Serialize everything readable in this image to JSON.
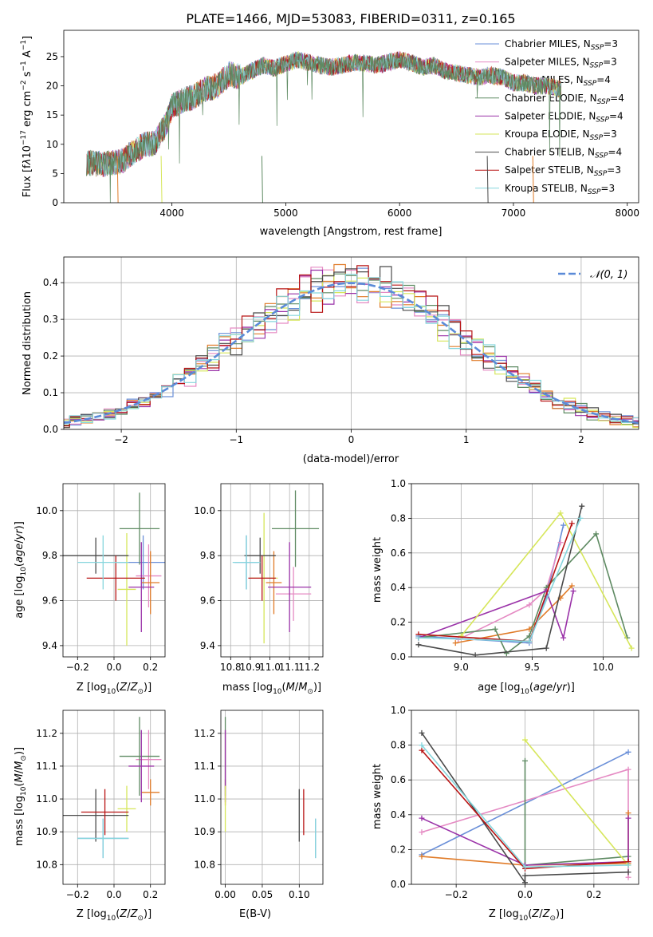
{
  "colors": {
    "series": [
      "#6a8fd8",
      "#e58ac3",
      "#e07b28",
      "#5e8a62",
      "#9a32a8",
      "#d6e65a",
      "#4a4a4a",
      "#b81414",
      "#86d6dd"
    ],
    "normal": "#5b8bd8"
  },
  "chart_data": [
    {
      "type": "line",
      "title": "PLATE=1466, MJD=53083, FIBERID=0311, z=0.165",
      "xlabel": "wavelength [Angstrom, rest frame]",
      "ylabel": "Flux [f_λ10^-17 erg cm^-2 s^-1 A^-1]",
      "xlim": [
        3050,
        8100
      ],
      "ylim": [
        0,
        29.5
      ],
      "xticks": [
        "4000",
        "5000",
        "6000",
        "7000",
        "8000"
      ],
      "yticks": [
        "0",
        "5",
        "10",
        "15",
        "20",
        "25"
      ],
      "grid": false,
      "legend_position": "top-right",
      "legend": [
        {
          "model": "Chabrier MILES",
          "n": "3"
        },
        {
          "model": "Salpeter MILES",
          "n": "3"
        },
        {
          "model": "Kroupa MILES",
          "n": "4"
        },
        {
          "model": "Chabrier ELODIE",
          "n": "4"
        },
        {
          "model": "Salpeter ELODIE",
          "n": "4"
        },
        {
          "model": "Kroupa ELODIE",
          "n": "3"
        },
        {
          "model": "Chabrier STELIB",
          "n": "4"
        },
        {
          "model": "Salpeter STELIB",
          "n": "3"
        },
        {
          "model": "Kroupa STELIB",
          "n": "3"
        }
      ],
      "observed_envelope": {
        "x": [
          3250,
          3400,
          3550,
          3650,
          3750,
          3850,
          3950,
          4000,
          4100,
          4200,
          4300,
          4400,
          4500,
          4600,
          4700,
          4800,
          4900,
          5000,
          5100,
          5200,
          5300,
          5400,
          5500,
          5600,
          5700,
          5800,
          5900,
          6000,
          6100,
          6200,
          6300,
          6400,
          6500,
          6600,
          6700,
          6800,
          6900,
          7000,
          7100,
          7200,
          7300,
          7400
        ],
        "y": [
          6.8,
          6.6,
          7.0,
          8.5,
          9.8,
          10.3,
          13.5,
          16.5,
          17.5,
          18.2,
          19.5,
          20.0,
          22.0,
          21.5,
          22.5,
          23.5,
          23.0,
          23.8,
          24.5,
          24.0,
          23.5,
          23.2,
          23.5,
          24.0,
          23.8,
          23.5,
          24.0,
          24.5,
          24.0,
          23.2,
          23.5,
          22.5,
          22.2,
          21.8,
          21.5,
          21.8,
          21.5,
          20.5,
          20.5,
          20.0,
          20.0,
          19.5
        ]
      }
    },
    {
      "type": "step-histogram",
      "xlabel": "(data-model)/error",
      "ylabel": "Normed distribution",
      "xlim": [
        -2.5,
        2.5
      ],
      "ylim": [
        0,
        0.47
      ],
      "xticks": [
        "−2",
        "−1",
        "0",
        "1",
        "2"
      ],
      "yticks": [
        "0.0",
        "0.1",
        "0.2",
        "0.3",
        "0.4"
      ],
      "grid": true,
      "legend_position": "top-right",
      "reference_curve": {
        "name": "𝒩(0, 1)",
        "mean": 0,
        "std": 1
      },
      "bin_width": 0.1
    },
    {
      "type": "errorbar",
      "xlabel": "Z [log10(Z/Z⊙)]",
      "ylabel": "age  [log10(age/yr)]",
      "xlim": [
        -0.28,
        0.28
      ],
      "ylim": [
        9.35,
        10.12
      ],
      "xticks": [
        "−0.2",
        "0.0",
        "0.2"
      ],
      "yticks": [
        "9.4",
        "9.6",
        "9.8",
        "10.0"
      ],
      "grid": true,
      "points": [
        {
          "x": 0.16,
          "xerr": 0.14,
          "y": 9.77,
          "yerr": 0.12
        },
        {
          "x": 0.19,
          "xerr": 0.07,
          "y": 9.71,
          "yerr": 0.14
        },
        {
          "x": 0.2,
          "xerr": 0.05,
          "y": 9.68,
          "yerr": 0.14
        },
        {
          "x": 0.14,
          "xerr": 0.11,
          "y": 9.92,
          "yerr": 0.16
        },
        {
          "x": 0.15,
          "xerr": 0.07,
          "y": 9.66,
          "yerr": 0.2
        },
        {
          "x": 0.07,
          "xerr": 0.05,
          "y": 9.65,
          "yerr": 0.25
        },
        {
          "x": -0.1,
          "xerr": 0.18,
          "y": 9.8,
          "yerr": 0.08
        },
        {
          "x": 0.01,
          "xerr": 0.16,
          "y": 9.7,
          "yerr": 0.1
        },
        {
          "x": -0.06,
          "xerr": 0.14,
          "y": 9.77,
          "yerr": 0.12
        }
      ]
    },
    {
      "type": "errorbar",
      "xlabel": "mass [log10(M/M⊙)]",
      "ylabel": "",
      "xlim": [
        10.75,
        11.27
      ],
      "ylim": [
        9.35,
        10.12
      ],
      "xticks": [
        "10.8",
        "10.9",
        "11.0",
        "11.1",
        "11.2"
      ],
      "yticks": [
        "9.4",
        "9.6",
        "9.8",
        "10.0"
      ],
      "grid": true,
      "points": [
        {
          "x": 10.88,
          "xerr": 0.06,
          "y": 9.77,
          "yerr": 0.12
        },
        {
          "x": 11.12,
          "xerr": 0.09,
          "y": 9.63,
          "yerr": 0.12
        },
        {
          "x": 11.02,
          "xerr": 0.04,
          "y": 9.68,
          "yerr": 0.14
        },
        {
          "x": 11.13,
          "xerr": 0.12,
          "y": 9.92,
          "yerr": 0.17
        },
        {
          "x": 11.1,
          "xerr": 0.11,
          "y": 9.66,
          "yerr": 0.2
        },
        {
          "x": 10.97,
          "xerr": 0.07,
          "y": 9.7,
          "yerr": 0.29
        },
        {
          "x": 10.95,
          "xerr": 0.08,
          "y": 9.8,
          "yerr": 0.08
        },
        {
          "x": 10.96,
          "xerr": 0.07,
          "y": 9.7,
          "yerr": 0.1
        },
        {
          "x": 10.88,
          "xerr": 0.07,
          "y": 9.77,
          "yerr": 0.12
        }
      ]
    },
    {
      "type": "line",
      "xlabel": "age  [log10(age/yr)]",
      "ylabel": "mass weight",
      "xlim": [
        8.65,
        10.25
      ],
      "ylim": [
        0,
        1
      ],
      "xticks": [
        "9.0",
        "9.5",
        "10.0"
      ],
      "yticks": [
        "0.0",
        "0.2",
        "0.4",
        "0.6",
        "0.8",
        "1.0"
      ],
      "grid": true,
      "series": [
        {
          "x": [
            8.7,
            9.48,
            9.6,
            9.72
          ],
          "y": [
            0.12,
            0.08,
            0.35,
            0.76
          ]
        },
        {
          "x": [
            8.98,
            9.48,
            9.6,
            9.7
          ],
          "y": [
            0.1,
            0.3,
            0.39,
            0.66
          ]
        },
        {
          "x": [
            8.96,
            9.48,
            9.7,
            9.78
          ],
          "y": [
            0.08,
            0.16,
            0.34,
            0.41
          ]
        },
        {
          "x": [
            8.7,
            9.24,
            9.32,
            9.48,
            9.6,
            9.95,
            10.17
          ],
          "y": [
            0.11,
            0.16,
            0.02,
            0.12,
            0.4,
            0.71,
            0.11
          ]
        },
        {
          "x": [
            8.7,
            9.6,
            9.72,
            9.79
          ],
          "y": [
            0.11,
            0.38,
            0.11,
            0.38
          ]
        },
        {
          "x": [
            9.0,
            9.7,
            10.2
          ],
          "y": [
            0.12,
            0.83,
            0.05
          ]
        },
        {
          "x": [
            8.7,
            9.1,
            9.6,
            9.85
          ],
          "y": [
            0.07,
            0.01,
            0.05,
            0.87
          ]
        },
        {
          "x": [
            8.7,
            9.48,
            9.78
          ],
          "y": [
            0.13,
            0.09,
            0.77
          ]
        },
        {
          "x": [
            8.7,
            9.48,
            9.84
          ],
          "y": [
            0.11,
            0.09,
            0.8
          ]
        }
      ]
    },
    {
      "type": "errorbar",
      "xlabel": "Z [log10(Z/Z⊙)]",
      "ylabel": "mass [log10(M/M⊙)]",
      "xlim": [
        -0.28,
        0.28
      ],
      "ylim": [
        10.74,
        11.27
      ],
      "xticks": [
        "−0.2",
        "0.0",
        "0.2"
      ],
      "yticks": [
        "10.8",
        "10.9",
        "11.0",
        "11.1",
        "11.2"
      ],
      "grid": true,
      "points": [
        {
          "x": -0.06,
          "xerr": 0.14,
          "y": 10.88,
          "yerr": 0.06
        },
        {
          "x": 0.19,
          "xerr": 0.07,
          "y": 11.12,
          "yerr": 0.09
        },
        {
          "x": 0.2,
          "xerr": 0.05,
          "y": 11.02,
          "yerr": 0.04
        },
        {
          "x": 0.14,
          "xerr": 0.11,
          "y": 11.13,
          "yerr": 0.12
        },
        {
          "x": 0.15,
          "xerr": 0.07,
          "y": 11.1,
          "yerr": 0.11
        },
        {
          "x": 0.07,
          "xerr": 0.05,
          "y": 10.97,
          "yerr": 0.07
        },
        {
          "x": -0.1,
          "xerr": 0.18,
          "y": 10.95,
          "yerr": 0.08
        },
        {
          "x": -0.05,
          "xerr": 0.13,
          "y": 10.96,
          "yerr": 0.07
        },
        {
          "x": -0.06,
          "xerr": 0.14,
          "y": 10.88,
          "yerr": 0.06
        }
      ]
    },
    {
      "type": "errorbar",
      "xlabel": "E(B-V)",
      "ylabel": "",
      "xlim": [
        -0.006,
        0.132
      ],
      "ylim": [
        10.74,
        11.27
      ],
      "xticks": [
        "0.00",
        "0.05",
        "0.10"
      ],
      "yticks": [
        "10.8",
        "10.9",
        "11.0",
        "11.1",
        "11.2"
      ],
      "grid": true,
      "points": [
        {
          "x": 0.122,
          "xerr": 0.0,
          "y": 10.88,
          "yerr": 0.06
        },
        {
          "x": 0.0,
          "xerr": 0.0,
          "y": 11.12,
          "yerr": 0.09
        },
        {
          "x": 0.0,
          "xerr": 0.0,
          "y": 11.02,
          "yerr": 0.04
        },
        {
          "x": 0.0,
          "xerr": 0.0,
          "y": 11.13,
          "yerr": 0.12
        },
        {
          "x": 0.0,
          "xerr": 0.0,
          "y": 11.1,
          "yerr": 0.11
        },
        {
          "x": 0.0,
          "xerr": 0.0,
          "y": 10.97,
          "yerr": 0.07
        },
        {
          "x": 0.1,
          "xerr": 0.0,
          "y": 10.95,
          "yerr": 0.08
        },
        {
          "x": 0.106,
          "xerr": 0.0,
          "y": 10.96,
          "yerr": 0.07
        },
        {
          "x": 0.122,
          "xerr": 0.0,
          "y": 10.88,
          "yerr": 0.06
        }
      ]
    },
    {
      "type": "line",
      "xlabel": "Z [log10(Z/Z⊙)]",
      "ylabel": "mass weight",
      "xlim": [
        -0.33,
        0.33
      ],
      "ylim": [
        0,
        1
      ],
      "xticks": [
        "−0.2",
        "0.0",
        "0.2"
      ],
      "yticks": [
        "0.0",
        "0.2",
        "0.4",
        "0.6",
        "0.8",
        "1.0"
      ],
      "grid": true,
      "series": [
        {
          "x": [
            -0.3,
            0.3
          ],
          "y": [
            0.17,
            0.76
          ]
        },
        {
          "x": [
            -0.3,
            0.3,
            0.3
          ],
          "y": [
            0.3,
            0.66,
            0.04
          ]
        },
        {
          "x": [
            -0.3,
            0.0,
            0.3,
            0.3
          ],
          "y": [
            0.16,
            0.11,
            0.12,
            0.41
          ]
        },
        {
          "x": [
            0.0,
            0.0,
            0.3
          ],
          "y": [
            0.71,
            0.11,
            0.16
          ]
        },
        {
          "x": [
            -0.3,
            0.0,
            0.3,
            0.3
          ],
          "y": [
            0.38,
            0.11,
            0.13,
            0.38
          ]
        },
        {
          "x": [
            0.0,
            0.3
          ],
          "y": [
            0.83,
            0.11
          ]
        },
        {
          "x": [
            -0.3,
            0.0,
            0.0,
            0.3
          ],
          "y": [
            0.87,
            0.01,
            0.05,
            0.07
          ]
        },
        {
          "x": [
            -0.3,
            0.0,
            0.3
          ],
          "y": [
            0.77,
            0.09,
            0.13
          ]
        },
        {
          "x": [
            -0.3,
            0.0,
            0.3
          ],
          "y": [
            0.8,
            0.1,
            0.11
          ]
        }
      ]
    }
  ]
}
